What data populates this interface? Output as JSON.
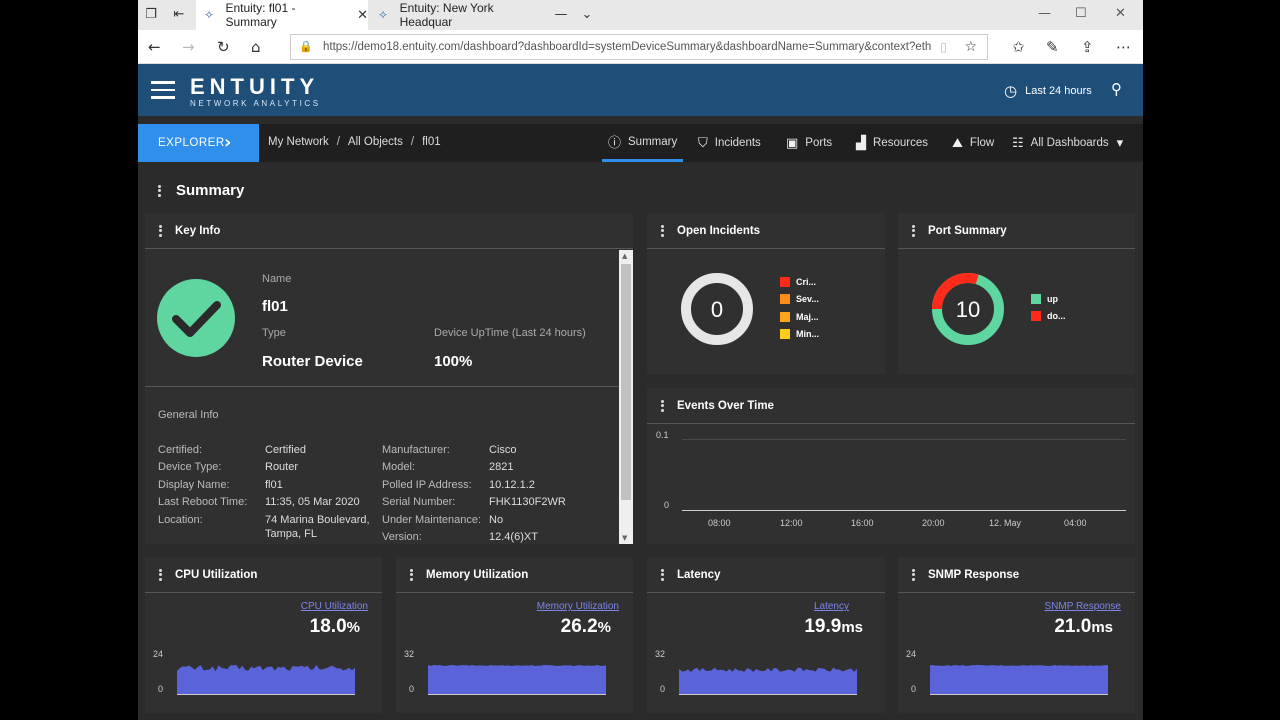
{
  "browser": {
    "tabs": [
      {
        "title": "Entuity: fl01 - Summary",
        "active": true
      },
      {
        "title": "Entuity: New York Headquar",
        "active": false
      }
    ],
    "url": "https://demo18.entuity.com/dashboard?dashboardId=systemDeviceSummary&dashboardName=Summary&context?eth"
  },
  "app": {
    "logo_main": "ENTUITY",
    "logo_sub": "NETWORK ANALYTICS",
    "time_range": "Last 24 hours"
  },
  "nav": {
    "explorer_label": "EXPLORER",
    "breadcrumbs": [
      "My Network",
      "All Objects",
      "fl01"
    ],
    "tabs": [
      {
        "label": "Summary",
        "icon": "info-icon",
        "active": true
      },
      {
        "label": "Incidents",
        "icon": "shield-icon"
      },
      {
        "label": "Ports",
        "icon": "port-icon"
      },
      {
        "label": "Resources",
        "icon": "bar-chart-icon"
      },
      {
        "label": "Flow",
        "icon": "flow-icon"
      },
      {
        "label": "All Dashboards",
        "icon": "grid-icon"
      }
    ]
  },
  "page": {
    "title": "Summary"
  },
  "key_info": {
    "title": "Key Info",
    "name_label": "Name",
    "name_value": "fl01",
    "type_label": "Type",
    "type_value": "Router Device",
    "uptime_label": "Device UpTime (Last 24 hours)",
    "uptime_value": "100%",
    "general_label": "General Info",
    "left_fields": [
      {
        "label": "Certified:",
        "value": "Certified"
      },
      {
        "label": "Device Type:",
        "value": "Router"
      },
      {
        "label": "Display Name:",
        "value": "fl01"
      },
      {
        "label": "Last Reboot Time:",
        "value": "11:35, 05 Mar 2020"
      },
      {
        "label": "Location:",
        "value": "74 Marina Boulevard,",
        "value2": "Tampa, FL"
      }
    ],
    "right_fields": [
      {
        "label": "Manufacturer:",
        "value": "Cisco"
      },
      {
        "label": "Model:",
        "value": "2821"
      },
      {
        "label": "Polled IP Address:",
        "value": "10.12.1.2"
      },
      {
        "label": "Serial Number:",
        "value": "FHK1130F2WR"
      },
      {
        "label": "Under Maintenance:",
        "value": "No"
      },
      {
        "label": "Version:",
        "value": "12.4(6)XT"
      }
    ]
  },
  "open_incidents": {
    "title": "Open Incidents",
    "count": "0",
    "legend": [
      {
        "label": "Cri...",
        "color": "#ff2a1a"
      },
      {
        "label": "Sev...",
        "color": "#ff8c1a"
      },
      {
        "label": "Maj...",
        "color": "#ffa51a"
      },
      {
        "label": "Min...",
        "color": "#ffcc1a"
      }
    ]
  },
  "port_summary": {
    "title": "Port Summary",
    "count": "10",
    "legend": [
      {
        "label": "up",
        "color": "#5fd5a0"
      },
      {
        "label": "do...",
        "color": "#ff2a1a"
      }
    ]
  },
  "events_over_time": {
    "title": "Events Over Time",
    "y_top": "0.1",
    "y_bottom": "0",
    "x_ticks": [
      "08:00",
      "12:00",
      "16:00",
      "20:00",
      "12. May",
      "04:00"
    ]
  },
  "metrics": [
    {
      "title": "CPU Utilization",
      "chart_title": "CPU Utilization",
      "value": "18.0",
      "unit": "%",
      "ymax": "24",
      "ymin": "0"
    },
    {
      "title": "Memory Utilization",
      "chart_title": "Memory Utilization",
      "value": "26.2",
      "unit": "%",
      "ymax": "32",
      "ymin": "0"
    },
    {
      "title": "Latency",
      "chart_title": "Latency",
      "value": "19.9",
      "unit": "ms",
      "ymax": "32",
      "ymin": "0"
    },
    {
      "title": "SNMP Response",
      "chart_title": "SNMP Response",
      "value": "21.0",
      "unit": "ms",
      "ymax": "24",
      "ymin": "0"
    }
  ],
  "colors": {
    "header_blue": "#1f4e79",
    "accent_blue": "#2f8fea",
    "ok_green": "#5fd5a0",
    "series_blue": "#5b63d9"
  }
}
